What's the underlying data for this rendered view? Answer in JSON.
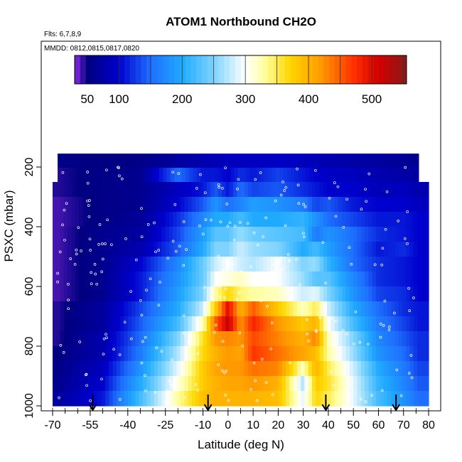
{
  "chart_data": {
    "type": "heatmap",
    "title": "ATOM1 Northbound CH2O",
    "notes": {
      "flights": "Flts: 6,7,8,9",
      "dates": "MMDD: 0812,0815,0817,0820"
    },
    "xlabel": "Latitude (deg N)",
    "ylabel": "PSXC (mbar)",
    "xlim": [
      -70,
      80
    ],
    "ylim": [
      1000,
      50
    ],
    "x_ticks": [
      -70,
      -55,
      -40,
      -25,
      -10,
      0,
      10,
      20,
      30,
      40,
      50,
      60,
      70,
      80
    ],
    "x_minor_ticks": [
      -65,
      -60,
      -50,
      -45,
      -35,
      -30,
      -20,
      -15,
      -5,
      5,
      15,
      25,
      35,
      45,
      55,
      65,
      75
    ],
    "y_ticks": [
      200,
      400,
      600,
      800,
      1000
    ],
    "colorbar": {
      "range": [
        30,
        555
      ],
      "ticks": [
        50,
        100,
        200,
        300,
        400,
        500
      ],
      "stops": [
        {
          "value": 30,
          "color": "#8b2be2"
        },
        {
          "value": 50,
          "color": "#000080"
        },
        {
          "value": 100,
          "color": "#0000cd"
        },
        {
          "value": 150,
          "color": "#1e6fff"
        },
        {
          "value": 200,
          "color": "#20aaff"
        },
        {
          "value": 250,
          "color": "#7fd4ff"
        },
        {
          "value": 300,
          "color": "#ffffff"
        },
        {
          "value": 330,
          "color": "#ffffa0"
        },
        {
          "value": 370,
          "color": "#ffd700"
        },
        {
          "value": 420,
          "color": "#ff9900"
        },
        {
          "value": 470,
          "color": "#ff3300"
        },
        {
          "value": 510,
          "color": "#d40000"
        },
        {
          "value": 555,
          "color": "#8b1a1a"
        }
      ]
    },
    "pressure_bins": [
      180,
      225,
      275,
      325,
      375,
      425,
      475,
      525,
      575,
      625,
      675,
      725,
      775,
      825,
      875,
      925,
      975
    ],
    "anchor_lats": [
      -68,
      -50,
      -35,
      -20,
      -10,
      -5,
      0,
      5,
      10,
      20,
      30,
      35,
      40,
      50,
      60,
      70,
      76
    ],
    "field": [
      [
        55,
        50,
        55,
        70,
        80,
        85,
        90,
        90,
        90,
        95,
        90,
        85,
        80,
        75,
        70,
        65,
        60
      ],
      [
        45,
        55,
        60,
        150,
        110,
        110,
        100,
        120,
        110,
        130,
        110,
        100,
        95,
        90,
        80,
        75,
        70
      ],
      [
        45,
        55,
        60,
        90,
        110,
        140,
        110,
        150,
        130,
        140,
        120,
        110,
        100,
        100,
        85,
        90,
        80
      ],
      [
        40,
        55,
        60,
        100,
        140,
        180,
        150,
        170,
        190,
        180,
        160,
        130,
        140,
        110,
        100,
        100,
        90
      ],
      [
        40,
        55,
        65,
        120,
        170,
        200,
        200,
        220,
        200,
        200,
        210,
        180,
        150,
        130,
        110,
        110,
        100
      ],
      [
        40,
        60,
        70,
        130,
        190,
        230,
        230,
        260,
        240,
        230,
        220,
        160,
        180,
        150,
        120,
        110,
        100
      ],
      [
        40,
        60,
        80,
        140,
        200,
        250,
        250,
        280,
        260,
        250,
        200,
        220,
        190,
        150,
        110,
        120,
        100
      ],
      [
        40,
        60,
        100,
        170,
        240,
        280,
        300,
        280,
        270,
        300,
        250,
        260,
        210,
        150,
        120,
        110,
        100
      ],
      [
        40,
        60,
        110,
        180,
        240,
        300,
        310,
        320,
        300,
        300,
        260,
        230,
        230,
        170,
        120,
        110,
        100
      ],
      [
        40,
        60,
        110,
        190,
        250,
        330,
        370,
        340,
        330,
        320,
        280,
        290,
        250,
        180,
        130,
        120,
        100
      ],
      [
        45,
        70,
        130,
        200,
        280,
        380,
        500,
        400,
        450,
        380,
        320,
        350,
        280,
        200,
        150,
        120,
        110
      ],
      [
        45,
        70,
        140,
        220,
        320,
        450,
        520,
        420,
        480,
        420,
        380,
        400,
        300,
        220,
        160,
        130,
        110
      ],
      [
        45,
        80,
        150,
        250,
        360,
        420,
        430,
        420,
        460,
        430,
        400,
        430,
        320,
        250,
        170,
        140,
        120
      ],
      [
        50,
        80,
        160,
        270,
        370,
        400,
        420,
        410,
        470,
        440,
        410,
        390,
        330,
        260,
        180,
        150,
        120
      ],
      [
        55,
        90,
        180,
        290,
        380,
        410,
        420,
        420,
        440,
        430,
        320,
        400,
        350,
        280,
        200,
        160,
        130
      ],
      [
        60,
        100,
        200,
        310,
        380,
        400,
        410,
        410,
        420,
        400,
        270,
        380,
        360,
        290,
        210,
        170,
        140
      ],
      [
        70,
        110,
        220,
        330,
        390,
        400,
        400,
        400,
        400,
        390,
        290,
        370,
        350,
        290,
        220,
        180,
        150
      ]
    ],
    "arrows_lat": [
      -54,
      -8,
      39,
      67
    ],
    "grid": false
  }
}
